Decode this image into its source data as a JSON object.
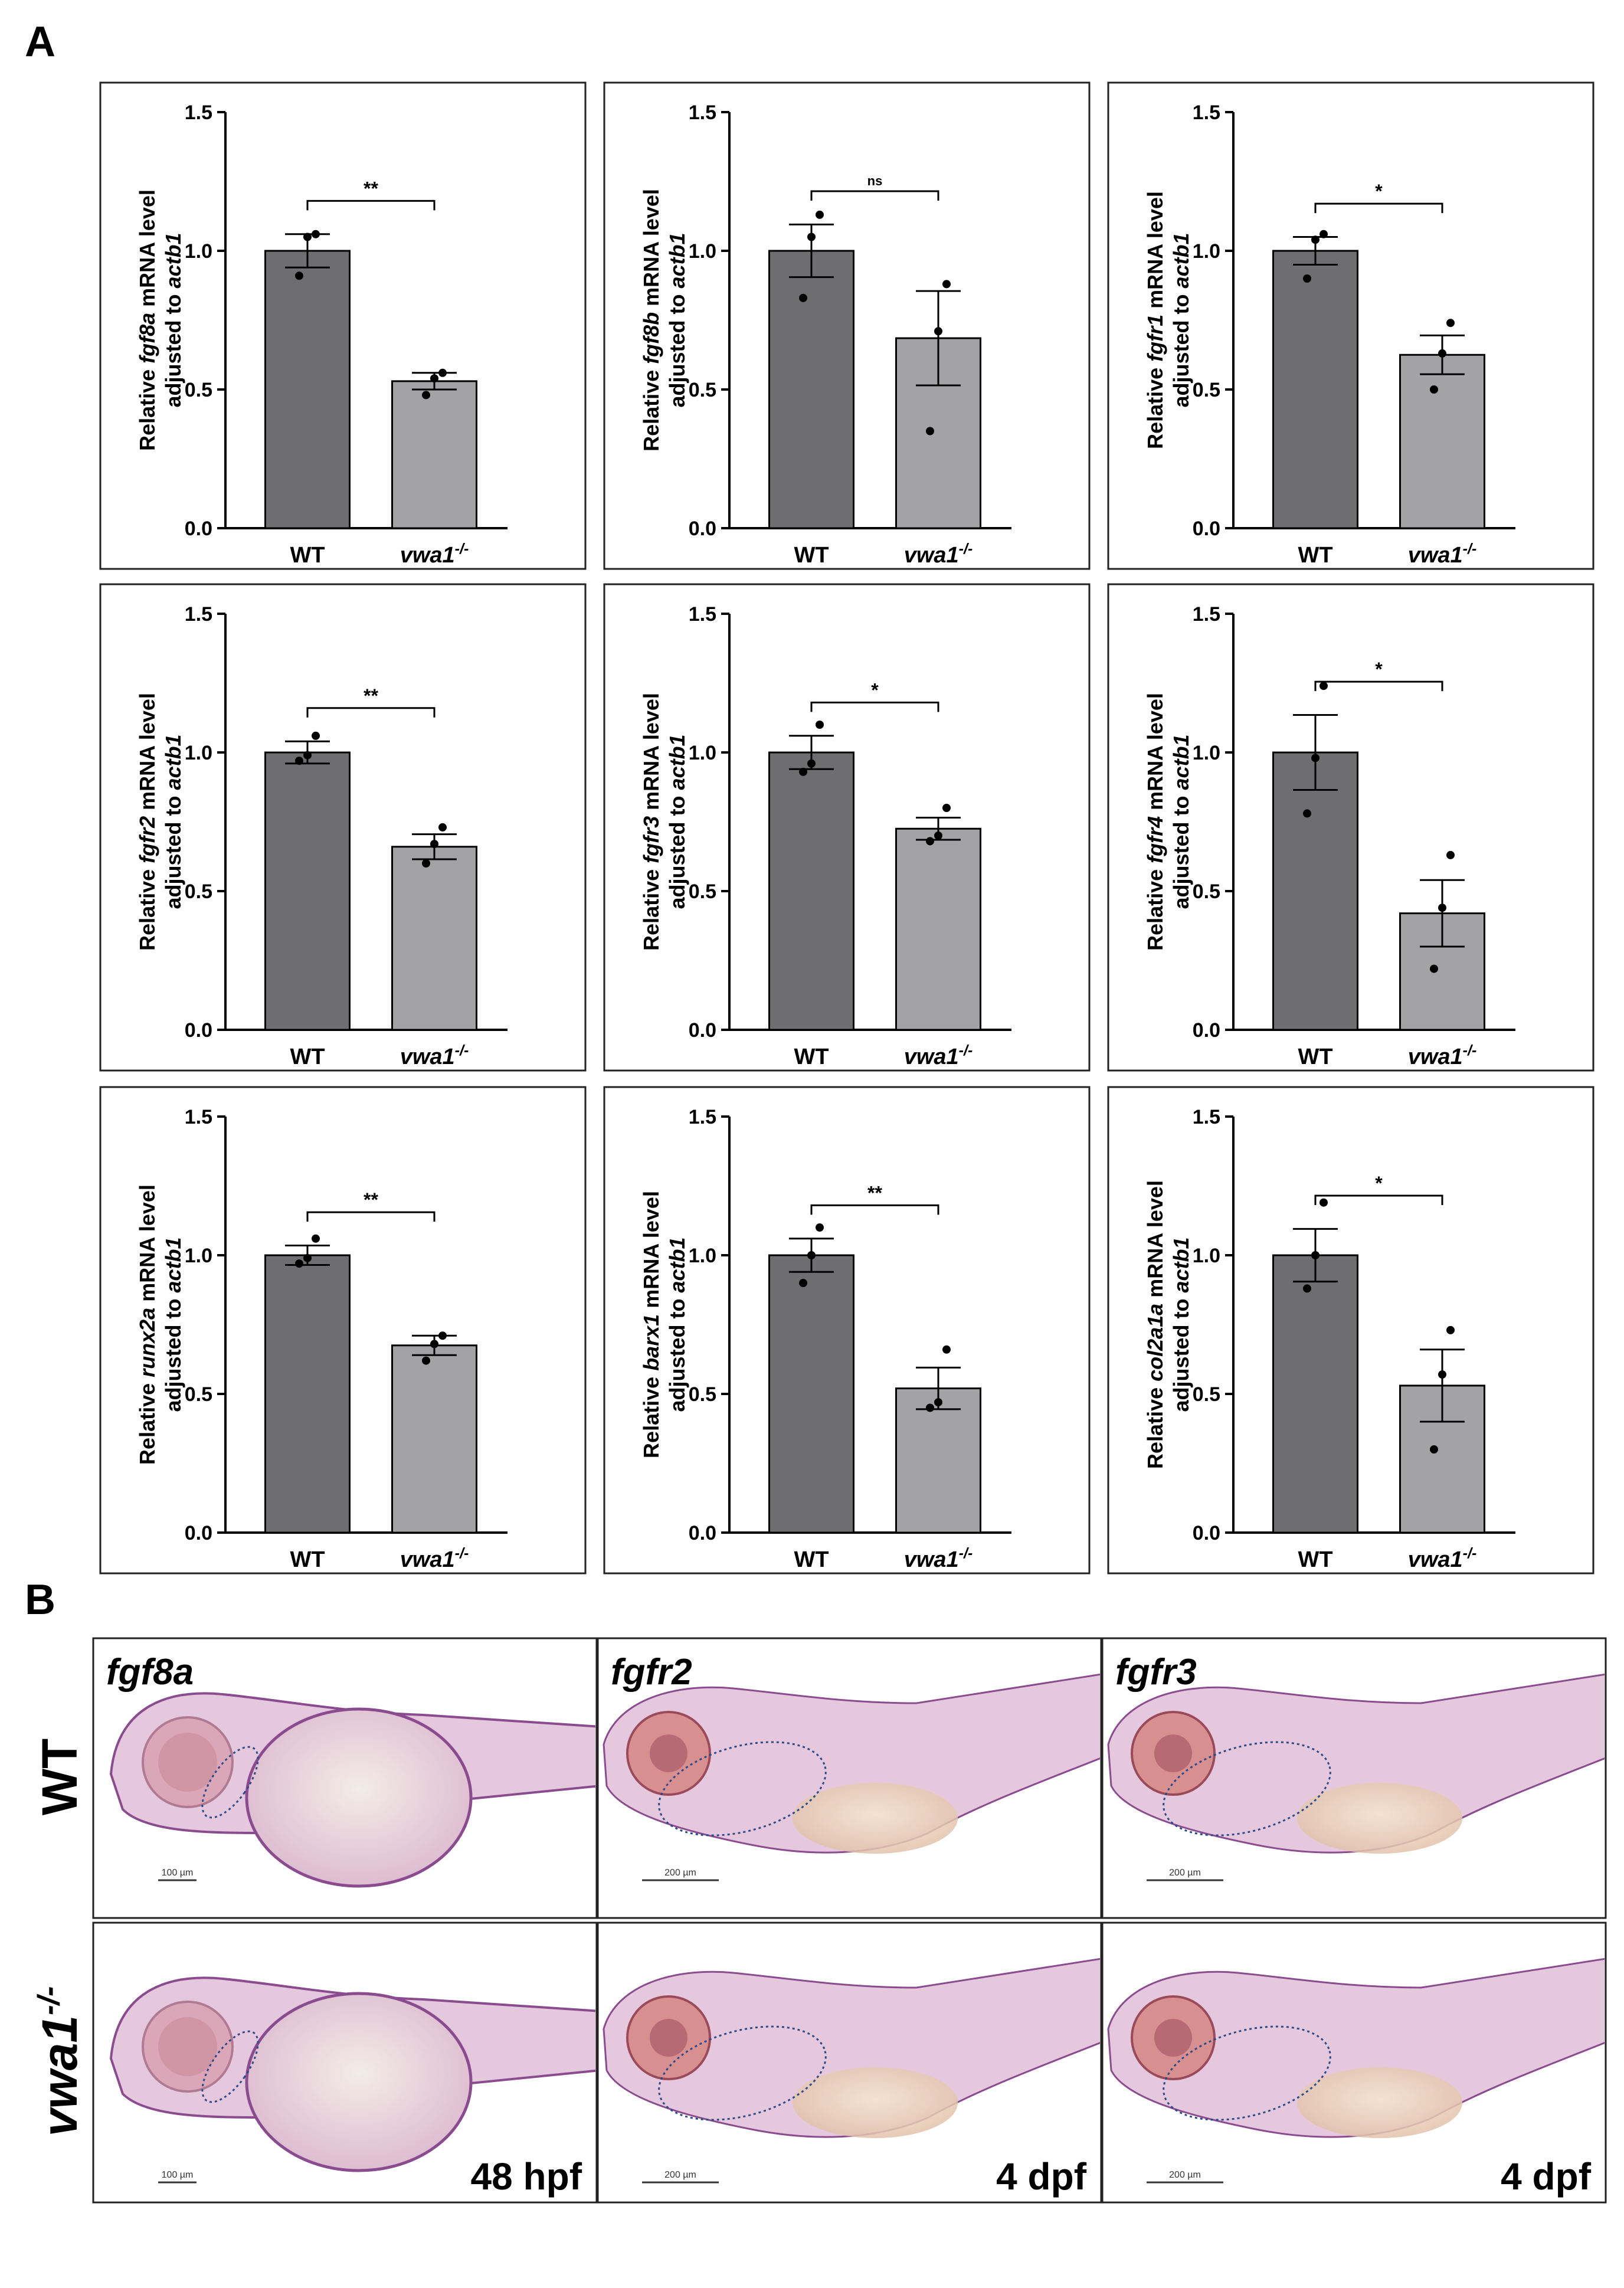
{
  "panels": {
    "a": "A",
    "b": "B"
  },
  "chart_data": [
    {
      "type": "bar",
      "gene": "fgf8a",
      "ylabel_prefix": "Relative ",
      "ylabel_suffix": " mRNA level",
      "ylabel_line2": "adjusted to ",
      "ylabel_ref": "actb1",
      "categories": [
        "WT",
        "vwa1"
      ],
      "genotype_sup": "-/-",
      "values": [
        1.0,
        0.53
      ],
      "sem": [
        0.06,
        0.03
      ],
      "points": [
        [
          0.91,
          1.05,
          1.06
        ],
        [
          0.48,
          0.54,
          0.56
        ]
      ],
      "significance": "**",
      "ylim": [
        0,
        1.5
      ],
      "yticks": [
        "0.0",
        "0.5",
        "1.0",
        "1.5"
      ],
      "bar_colors": [
        "#6e6e70",
        "#a3a3a6"
      ]
    },
    {
      "type": "bar",
      "gene": "fgf8b",
      "ylabel_prefix": "Relative ",
      "ylabel_suffix": " mRNA level",
      "ylabel_line2": "adjusted to ",
      "ylabel_ref": "actb1",
      "categories": [
        "WT",
        "vwa1"
      ],
      "genotype_sup": "-/-",
      "values": [
        1.0,
        0.685
      ],
      "sem": [
        0.095,
        0.17
      ],
      "points": [
        [
          0.83,
          1.05,
          1.13
        ],
        [
          0.35,
          0.71,
          0.88
        ]
      ],
      "significance": "ns",
      "ylim": [
        0,
        1.5
      ],
      "yticks": [
        "0.0",
        "0.5",
        "1.0",
        "1.5"
      ],
      "bar_colors": [
        "#6e6e70",
        "#a3a3a6"
      ]
    },
    {
      "type": "bar",
      "gene": "fgfr1",
      "ylabel_prefix": "Relative ",
      "ylabel_suffix": " mRNA level",
      "ylabel_line2": "adjusted to ",
      "ylabel_ref": "actb1",
      "categories": [
        "WT",
        "vwa1"
      ],
      "genotype_sup": "-/-",
      "values": [
        1.0,
        0.625
      ],
      "sem": [
        0.05,
        0.07
      ],
      "points": [
        [
          0.9,
          1.04,
          1.06
        ],
        [
          0.5,
          0.63,
          0.74
        ]
      ],
      "significance": "*",
      "ylim": [
        0,
        1.5
      ],
      "yticks": [
        "0.0",
        "0.5",
        "1.0",
        "1.5"
      ],
      "bar_colors": [
        "#6e6e70",
        "#a3a3a6"
      ]
    },
    {
      "type": "bar",
      "gene": "fgfr2",
      "ylabel_prefix": "Relative ",
      "ylabel_suffix": " mRNA level",
      "ylabel_line2": "adjusted to ",
      "ylabel_ref": "actb1",
      "categories": [
        "WT",
        "vwa1"
      ],
      "genotype_sup": "-/-",
      "values": [
        1.0,
        0.66
      ],
      "sem": [
        0.04,
        0.045
      ],
      "points": [
        [
          0.97,
          0.99,
          1.06
        ],
        [
          0.6,
          0.67,
          0.73
        ]
      ],
      "significance": "**",
      "ylim": [
        0,
        1.5
      ],
      "yticks": [
        "0.0",
        "0.5",
        "1.0",
        "1.5"
      ],
      "bar_colors": [
        "#6e6e70",
        "#a3a3a6"
      ]
    },
    {
      "type": "bar",
      "gene": "fgfr3",
      "ylabel_prefix": "Relative ",
      "ylabel_suffix": " mRNA level",
      "ylabel_line2": "adjusted to ",
      "ylabel_ref": "actb1",
      "categories": [
        "WT",
        "vwa1"
      ],
      "genotype_sup": "-/-",
      "values": [
        1.0,
        0.725
      ],
      "sem": [
        0.06,
        0.04
      ],
      "points": [
        [
          0.93,
          0.96,
          1.1
        ],
        [
          0.68,
          0.7,
          0.8
        ]
      ],
      "significance": "*",
      "ylim": [
        0,
        1.5
      ],
      "yticks": [
        "0.0",
        "0.5",
        "1.0",
        "1.5"
      ],
      "bar_colors": [
        "#6e6e70",
        "#a3a3a6"
      ]
    },
    {
      "type": "bar",
      "gene": "fgfr4",
      "ylabel_prefix": "Relative ",
      "ylabel_suffix": " mRNA level",
      "ylabel_line2": "adjusted to ",
      "ylabel_ref": "actb1",
      "categories": [
        "WT",
        "vwa1"
      ],
      "genotype_sup": "-/-",
      "values": [
        1.0,
        0.42
      ],
      "sem": [
        0.135,
        0.12
      ],
      "points": [
        [
          0.78,
          0.98,
          1.24
        ],
        [
          0.22,
          0.44,
          0.63
        ]
      ],
      "significance": "*",
      "ylim": [
        0,
        1.5
      ],
      "yticks": [
        "0.0",
        "0.5",
        "1.0",
        "1.5"
      ],
      "bar_colors": [
        "#6e6e70",
        "#a3a3a6"
      ]
    },
    {
      "type": "bar",
      "gene": "runx2a",
      "ylabel_prefix": "Relative ",
      "ylabel_suffix": " mRNA level",
      "ylabel_line2": "adjusted to ",
      "ylabel_ref": "actb1",
      "categories": [
        "WT",
        "vwa1"
      ],
      "genotype_sup": "-/-",
      "values": [
        1.0,
        0.675
      ],
      "sem": [
        0.035,
        0.035
      ],
      "points": [
        [
          0.97,
          0.99,
          1.06
        ],
        [
          0.62,
          0.68,
          0.71
        ]
      ],
      "significance": "**",
      "ylim": [
        0,
        1.5
      ],
      "yticks": [
        "0.0",
        "0.5",
        "1.0",
        "1.5"
      ],
      "bar_colors": [
        "#6e6e70",
        "#a3a3a6"
      ]
    },
    {
      "type": "bar",
      "gene": "barx1",
      "ylabel_prefix": "Relative ",
      "ylabel_suffix": " mRNA level",
      "ylabel_line2": "adjusted to ",
      "ylabel_ref": "actb1",
      "categories": [
        "WT",
        "vwa1"
      ],
      "genotype_sup": "-/-",
      "values": [
        1.0,
        0.52
      ],
      "sem": [
        0.06,
        0.075
      ],
      "points": [
        [
          0.9,
          1.0,
          1.1
        ],
        [
          0.45,
          0.47,
          0.66
        ]
      ],
      "significance": "**",
      "ylim": [
        0,
        1.5
      ],
      "yticks": [
        "0.0",
        "0.5",
        "1.0",
        "1.5"
      ],
      "bar_colors": [
        "#6e6e70",
        "#a3a3a6"
      ]
    },
    {
      "type": "bar",
      "gene": "col2a1a",
      "ylabel_prefix": "Relative ",
      "ylabel_suffix": " mRNA level",
      "ylabel_line2": "adjusted to ",
      "ylabel_ref": "actb1",
      "categories": [
        "WT",
        "vwa1"
      ],
      "genotype_sup": "-/-",
      "values": [
        1.0,
        0.53
      ],
      "sem": [
        0.095,
        0.13
      ],
      "points": [
        [
          0.88,
          1.0,
          1.19
        ],
        [
          0.3,
          0.57,
          0.73
        ]
      ],
      "significance": "*",
      "ylim": [
        0,
        1.5
      ],
      "yticks": [
        "0.0",
        "0.5",
        "1.0",
        "1.5"
      ],
      "bar_colors": [
        "#6e6e70",
        "#a3a3a6"
      ]
    }
  ],
  "images": [
    {
      "gene": "fgf8a",
      "row": "WT",
      "scale": "100 µm",
      "timepoint": ""
    },
    {
      "gene": "fgfr2",
      "row": "WT",
      "scale": "200 µm",
      "timepoint": ""
    },
    {
      "gene": "fgfr3",
      "row": "WT",
      "scale": "200 µm",
      "timepoint": ""
    },
    {
      "gene": "",
      "row": "vwa1",
      "scale": "100 µm",
      "timepoint": "48 hpf"
    },
    {
      "gene": "",
      "row": "vwa1",
      "scale": "200 µm",
      "timepoint": "4 dpf"
    },
    {
      "gene": "",
      "row": "vwa1",
      "scale": "200 µm",
      "timepoint": "4 dpf"
    }
  ],
  "rows": {
    "wt": "WT",
    "mut": "vwa1",
    "mut_sup": "-/-"
  },
  "colors": {
    "embryo": "#e6c8de",
    "embryo_edge": "#8a4c8f",
    "eye": "#c98a9a",
    "ellipse": "#2b4a8a",
    "bg": "#ffffff"
  }
}
